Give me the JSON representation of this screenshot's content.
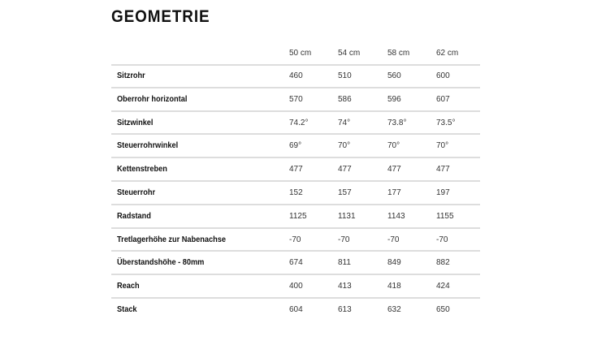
{
  "title": "GEOMETRIE",
  "columns": [
    "50 cm",
    "54 cm",
    "58 cm",
    "62 cm"
  ],
  "rows": [
    {
      "label": "Sitzrohr",
      "values": [
        "460",
        "510",
        "560",
        "600"
      ]
    },
    {
      "label": "Oberrohr horizontal",
      "values": [
        "570",
        "586",
        "596",
        "607"
      ]
    },
    {
      "label": "Sitzwinkel",
      "values": [
        "74.2°",
        "74°",
        "73.8°",
        "73.5°"
      ]
    },
    {
      "label": "Steuerrohrwinkel",
      "values": [
        "69°",
        "70°",
        "70°",
        "70°"
      ]
    },
    {
      "label": "Kettenstreben",
      "values": [
        "477",
        "477",
        "477",
        "477"
      ]
    },
    {
      "label": "Steuerrohr",
      "values": [
        "152",
        "157",
        "177",
        "197"
      ]
    },
    {
      "label": "Radstand",
      "values": [
        "1125",
        "1131",
        "1143",
        "1155"
      ]
    },
    {
      "label": "Tretlagerhöhe zur Nabenachse",
      "values": [
        "-70",
        "-70",
        "-70",
        "-70"
      ]
    },
    {
      "label": "Überstandshöhe - 80mm",
      "values": [
        "674",
        "811",
        "849",
        "882"
      ]
    },
    {
      "label": "Reach",
      "values": [
        "400",
        "413",
        "418",
        "424"
      ]
    },
    {
      "label": "Stack",
      "values": [
        "604",
        "613",
        "632",
        "650"
      ]
    }
  ]
}
